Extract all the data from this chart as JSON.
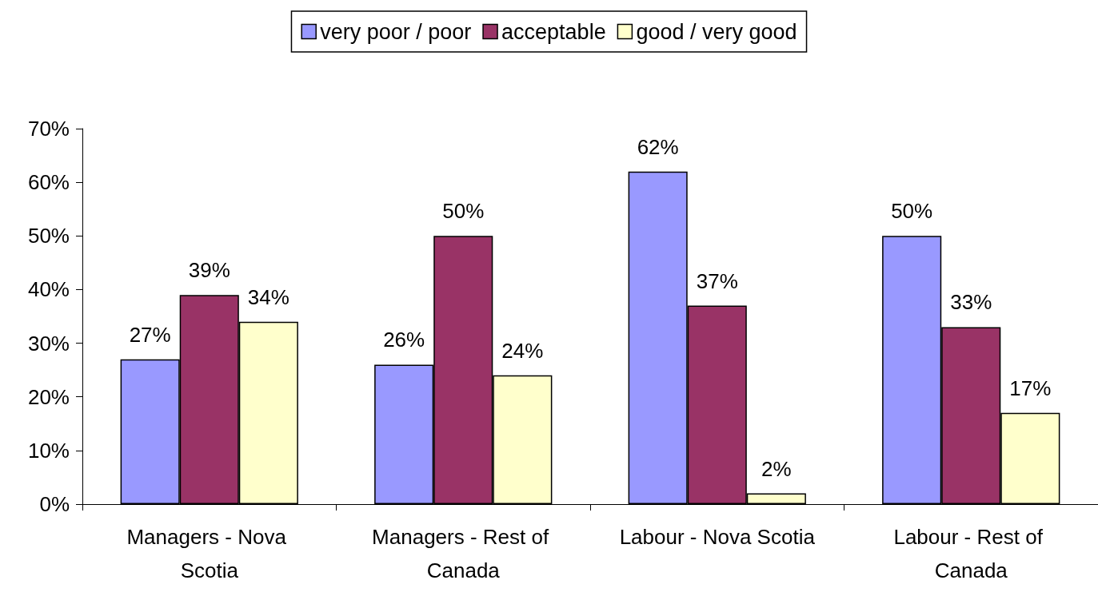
{
  "chart_data": {
    "type": "bar",
    "categories": [
      "Managers - Nova Scotia",
      "Managers - Rest of Canada",
      "Labour - Nova Scotia",
      "Labour - Rest of Canada"
    ],
    "series": [
      {
        "name": "very poor / poor",
        "color": "#9999ff",
        "values": [
          27,
          26,
          62,
          50
        ],
        "value_labels": [
          "27%",
          "26%",
          "62%",
          "50%"
        ]
      },
      {
        "name": "acceptable",
        "color": "#993366",
        "values": [
          39,
          50,
          37,
          33
        ],
        "value_labels": [
          "39%",
          "50%",
          "37%",
          "33%"
        ]
      },
      {
        "name": "good / very good",
        "color": "#ffffcc",
        "values": [
          34,
          24,
          2,
          17
        ],
        "value_labels": [
          "34%",
          "24%",
          "2%",
          "17%"
        ]
      }
    ],
    "ylim": [
      0,
      70
    ],
    "yticks": [
      {
        "value": 0,
        "label": "0%"
      },
      {
        "value": 10,
        "label": "10%"
      },
      {
        "value": 20,
        "label": "20%"
      },
      {
        "value": 30,
        "label": "30%"
      },
      {
        "value": 40,
        "label": "40%"
      },
      {
        "value": 50,
        "label": "50%"
      },
      {
        "value": 60,
        "label": "60%"
      },
      {
        "value": 70,
        "label": "70%"
      }
    ],
    "grid": false,
    "legend": "top"
  }
}
